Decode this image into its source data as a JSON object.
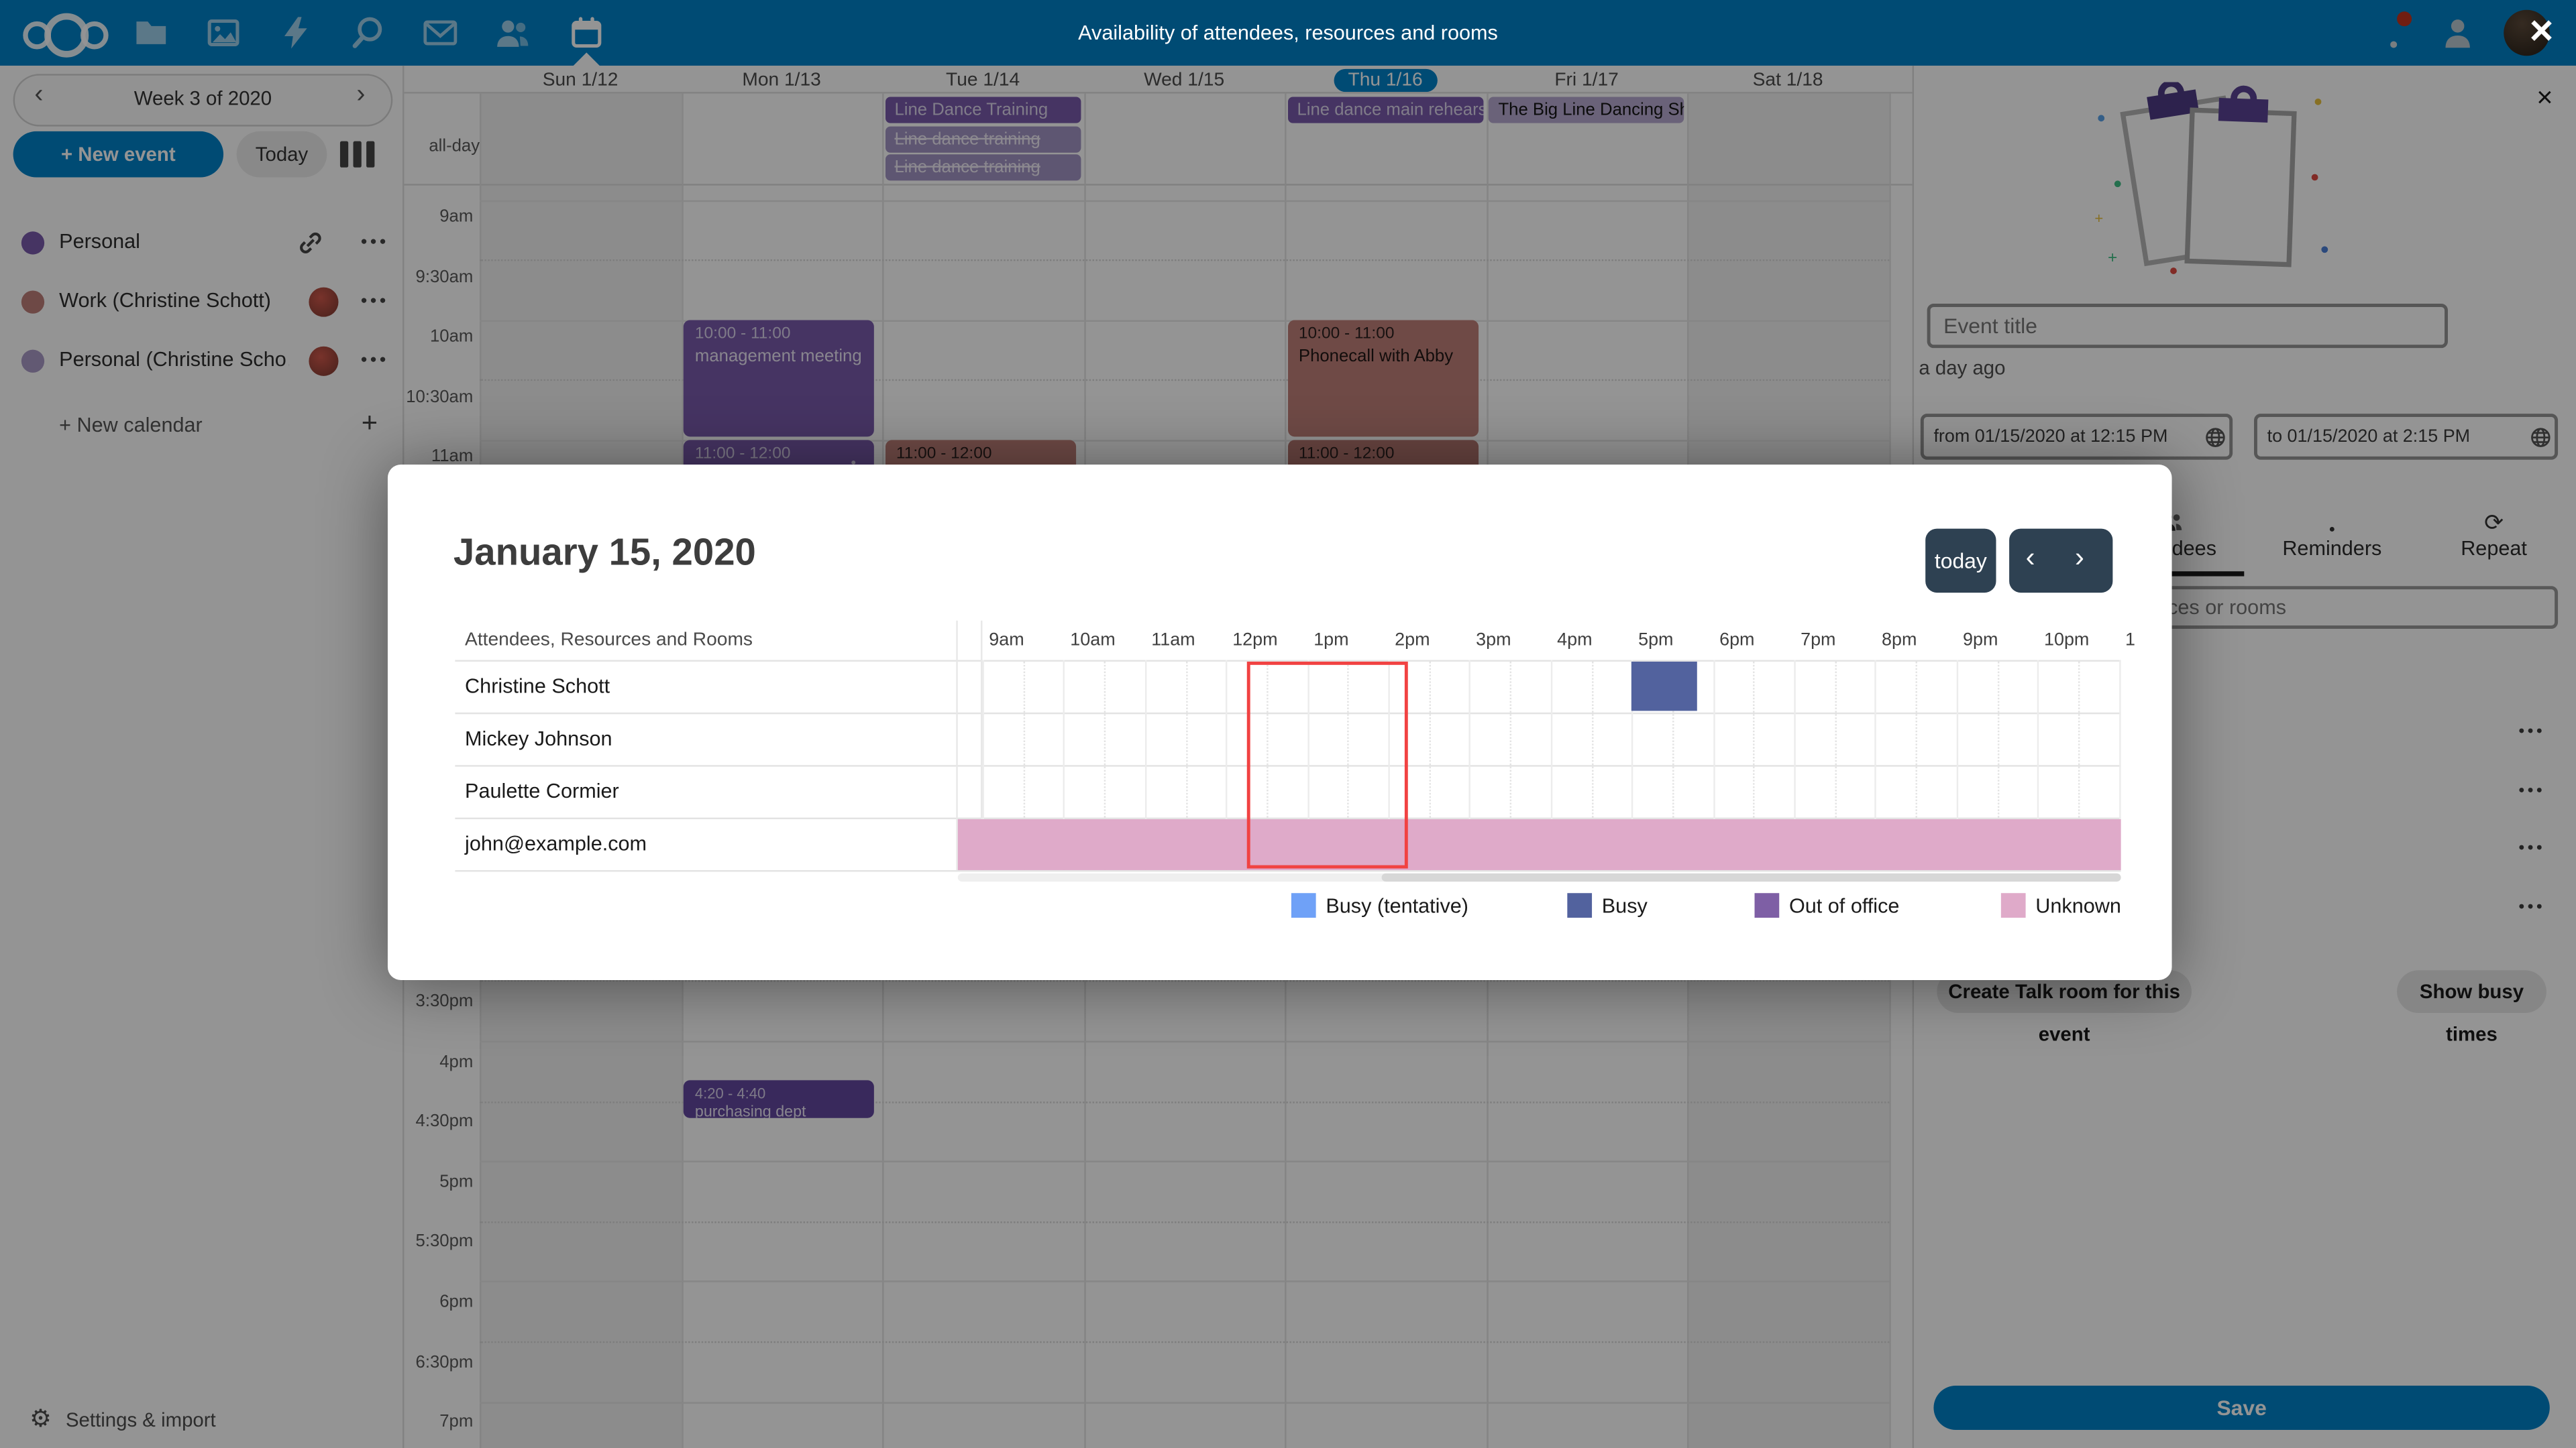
{
  "colors": {
    "primary": "#0082c9",
    "navy_button": "#2e4152",
    "selection_red": "#f14242",
    "event_purple": "#795aab",
    "event_purple_dark": "#62479f",
    "event_cancelled": "#a294c4",
    "event_lavender": "#b7aad1",
    "event_rose": "#c08079",
    "event_rose_dark": "#b4766f"
  },
  "topbar": {
    "title": "Availability of attendees, resources and rooms",
    "apps": [
      "files",
      "photos",
      "activity",
      "search",
      "mail",
      "contacts",
      "calendar"
    ],
    "active_app": "calendar",
    "close_label": "×"
  },
  "sidebar_left": {
    "week_label": "Week 3 of 2020",
    "prev": "‹",
    "next": "›",
    "new_event_label": "+ New event",
    "today_label": "Today",
    "calendars": [
      {
        "name": "Personal",
        "color": "#795aab",
        "trailing": "link"
      },
      {
        "name": "Work (Christine Schott)",
        "color": "#bd7f79",
        "trailing": "avatar"
      },
      {
        "name": "Personal (Christine Scho…)",
        "color": "#a99ac6",
        "trailing": "avatar"
      }
    ],
    "new_calendar_label": "+ New calendar",
    "settings_label": "Settings & import"
  },
  "calendar": {
    "allday_label": "all-day",
    "days": [
      {
        "label": "Sun 1/12",
        "weekend": true,
        "today": false
      },
      {
        "label": "Mon 1/13",
        "weekend": false,
        "today": false
      },
      {
        "label": "Tue 1/14",
        "weekend": false,
        "today": false
      },
      {
        "label": "Wed 1/15",
        "weekend": false,
        "today": false
      },
      {
        "label": "Thu 1/16",
        "weekend": false,
        "today": true
      },
      {
        "label": "Fri 1/17",
        "weekend": false,
        "today": false
      },
      {
        "label": "Sat 1/18",
        "weekend": true,
        "today": false
      }
    ],
    "time_labels_upper": [
      "9am",
      "9:30am",
      "10am",
      "10:30am",
      "11am"
    ],
    "time_labels_lower": [
      "3:30pm",
      "4pm",
      "4:30pm",
      "5pm",
      "5:30pm",
      "6pm",
      "6:30pm",
      "7pm"
    ],
    "allday_events": [
      {
        "day": 2,
        "title": "Line Dance Training",
        "variant": "solid"
      },
      {
        "day": 2,
        "title": "Line dance training",
        "variant": "cancelled"
      },
      {
        "day": 2,
        "title": "Line dance training",
        "variant": "cancelled"
      },
      {
        "day": 4,
        "title": "Line dance main rehearsal",
        "variant": "solid"
      },
      {
        "day": 5,
        "title": "The Big Line Dancing Show",
        "variant": "light"
      }
    ],
    "timed_events": [
      {
        "day": 1,
        "time": "10:00 - 11:00",
        "title": "management meeting",
        "start": 10,
        "end": 11,
        "variant": "purple",
        "bell": false
      },
      {
        "day": 1,
        "time": "11:00 - 12:00",
        "title": "",
        "start": 11,
        "end": 12,
        "variant": "purple",
        "bell": true
      },
      {
        "day": 2,
        "time": "11:00 - 12:00",
        "title": "",
        "start": 11,
        "end": 12,
        "variant": "rose",
        "bell": false
      },
      {
        "day": 4,
        "time": "10:00 - 11:00",
        "title": "Phonecall with Abby",
        "start": 10,
        "end": 11,
        "variant": "rose",
        "bell": false
      },
      {
        "day": 4,
        "time": "11:00 - 12:00",
        "title": "",
        "start": 11,
        "end": 12,
        "variant": "rose_dark",
        "bell": false
      },
      {
        "day": 1,
        "time": "4:20 - 4:40",
        "title": "purchasing dept",
        "start": 16.333,
        "end": 16.667,
        "variant": "purple_dark",
        "bell": false
      }
    ]
  },
  "modal": {
    "title": "January 15, 2020",
    "today_label": "today",
    "prev": "‹",
    "next": "›",
    "grid_header": "Attendees, Resources and Rooms",
    "attendees": [
      "Christine Schott",
      "Mickey Johnson",
      "Paulette Cormier",
      "john@example.com"
    ],
    "time_labels": [
      "9am",
      "10am",
      "11am",
      "12pm",
      "1pm",
      "2pm",
      "3pm",
      "4pm",
      "5pm",
      "6pm",
      "7pm",
      "8pm",
      "9pm",
      "10pm",
      "1"
    ],
    "busy_blocks": [
      {
        "row": 0,
        "start": 17,
        "end": 17.8,
        "type": "busy",
        "color": "#52629e"
      }
    ],
    "unknown_rows": [
      3
    ],
    "unknown_color": "#dfaac9",
    "selection": {
      "start": 12.25,
      "end": 14.25
    },
    "legend": [
      {
        "label": "Busy (tentative)",
        "color": "#6fa1f7"
      },
      {
        "label": "Busy",
        "color": "#52629e"
      },
      {
        "label": "Out of office",
        "color": "#7e5fa5"
      },
      {
        "label": "Unknown",
        "color": "#dfaac9"
      }
    ]
  },
  "sidebar_right": {
    "close_label": "×",
    "event_title_placeholder": "Event title",
    "modified_label": "a day ago",
    "from_value": "from 01/15/2020 at 12:15 PM",
    "to_value": "to 01/15/2020 at 2:15 PM",
    "tabs": [
      {
        "label": "Attendees",
        "icon": "people",
        "active": true
      },
      {
        "label": "Reminders",
        "icon": "bell",
        "active": false
      },
      {
        "label": "Repeat",
        "icon": "repeat",
        "active": false
      }
    ],
    "search_placeholder": "Search attendees, resources or rooms",
    "attendee_menu_rows": 4,
    "talk_button_label": "Create Talk room for this event",
    "busy_button_label": "Show busy times",
    "save_label": "Save"
  }
}
